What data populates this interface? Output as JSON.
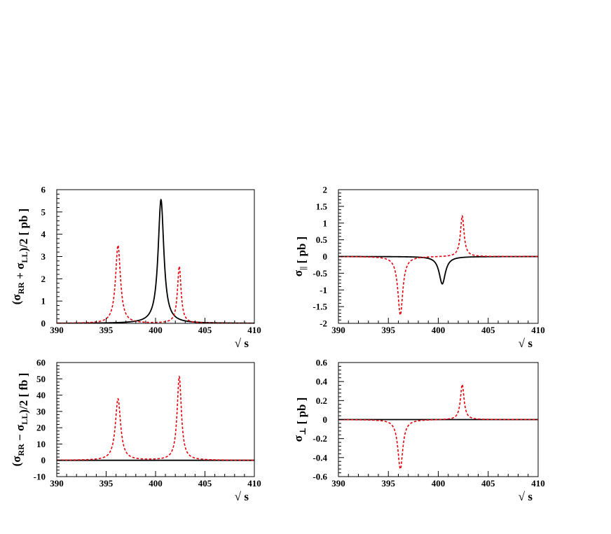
{
  "chart_data": [
    {
      "type": "line",
      "id": "panel-top-left",
      "ylabel_prefix": "(σ",
      "ylabel_sub1": "RR",
      "ylabel_mid": " + σ",
      "ylabel_sub2": "LL",
      "ylabel_suffix": ")/2 [ pb ]",
      "xlabel": "√ s",
      "xlim": [
        390,
        410
      ],
      "ylim": [
        0,
        6
      ],
      "xticks": [
        390,
        395,
        400,
        405,
        410
      ],
      "yticks": [
        0,
        1,
        2,
        3,
        4,
        5,
        6
      ],
      "ytick_labels": [
        "0",
        "1",
        "2",
        "3",
        "4",
        "5",
        "6"
      ],
      "series": [
        {
          "color": "#000000",
          "style": "solid",
          "peaks": [
            {
              "x0": 400.55,
              "amp": 5.55,
              "gamma": 0.35
            }
          ]
        },
        {
          "color": "#e8000b",
          "style": "dashed",
          "peaks": [
            {
              "x0": 396.2,
              "amp": 3.5,
              "gamma": 0.3
            },
            {
              "x0": 402.4,
              "amp": 2.55,
              "gamma": 0.22
            }
          ]
        }
      ]
    },
    {
      "type": "line",
      "id": "panel-top-right",
      "ylabel_prefix": "σ",
      "ylabel_sub1": "||",
      "ylabel_mid": "",
      "ylabel_sub2": "",
      "ylabel_suffix": " [ pb ]",
      "xlabel": "√ s",
      "xlim": [
        390,
        410
      ],
      "ylim": [
        -2,
        2
      ],
      "xticks": [
        390,
        395,
        400,
        405,
        410
      ],
      "yticks": [
        -2,
        -1.5,
        -1,
        -0.5,
        0,
        0.5,
        1,
        1.5,
        2
      ],
      "ytick_labels": [
        "-2",
        "-1.5",
        "-1",
        "-0.5",
        "0",
        "0.5",
        "1",
        "1.5",
        "2"
      ],
      "series": [
        {
          "color": "#000000",
          "style": "solid",
          "peaks": [
            {
              "x0": 400.4,
              "amp": -0.82,
              "gamma": 0.38
            }
          ]
        },
        {
          "color": "#e8000b",
          "style": "dashed",
          "peaks": [
            {
              "x0": 396.2,
              "amp": -1.75,
              "gamma": 0.3
            },
            {
              "x0": 402.4,
              "amp": 1.22,
              "gamma": 0.22
            }
          ]
        }
      ]
    },
    {
      "type": "line",
      "id": "panel-bottom-left",
      "ylabel_prefix": "(σ",
      "ylabel_sub1": "RR",
      "ylabel_mid": " − σ",
      "ylabel_sub2": "LL",
      "ylabel_suffix": ")/2 [ fb ]",
      "xlabel": "√ s",
      "xlim": [
        390,
        410
      ],
      "ylim": [
        -10,
        60
      ],
      "xticks": [
        390,
        395,
        400,
        405,
        410
      ],
      "yticks": [
        -10,
        0,
        10,
        20,
        30,
        40,
        50,
        60
      ],
      "ytick_labels": [
        "-10",
        "0",
        "10",
        "20",
        "30",
        "40",
        "50",
        "60"
      ],
      "series": [
        {
          "color": "#000000",
          "style": "solid",
          "peaks": []
        },
        {
          "color": "#e8000b",
          "style": "dashed",
          "peaks": [
            {
              "x0": 396.2,
              "amp": 37.7,
              "gamma": 0.32
            },
            {
              "x0": 402.4,
              "amp": 51.3,
              "gamma": 0.26
            }
          ]
        }
      ]
    },
    {
      "type": "line",
      "id": "panel-bottom-right",
      "ylabel_prefix": "σ",
      "ylabel_sub1": "⊥",
      "ylabel_mid": "",
      "ylabel_sub2": "",
      "ylabel_suffix": " [ pb ]",
      "xlabel": "√ s",
      "xlim": [
        390,
        410
      ],
      "ylim": [
        -0.6,
        0.6
      ],
      "xticks": [
        390,
        395,
        400,
        405,
        410
      ],
      "yticks": [
        -0.6,
        -0.4,
        -0.2,
        0,
        0.2,
        0.4,
        0.6
      ],
      "ytick_labels": [
        "-0.6",
        "-0.4",
        "-0.2",
        "0",
        "0.2",
        "0.4",
        "0.6"
      ],
      "series": [
        {
          "color": "#000000",
          "style": "solid",
          "peaks": []
        },
        {
          "color": "#e8000b",
          "style": "dashed",
          "peaks": [
            {
              "x0": 396.2,
              "amp": -0.52,
              "gamma": 0.3
            },
            {
              "x0": 402.4,
              "amp": 0.37,
              "gamma": 0.22
            }
          ]
        }
      ]
    }
  ]
}
